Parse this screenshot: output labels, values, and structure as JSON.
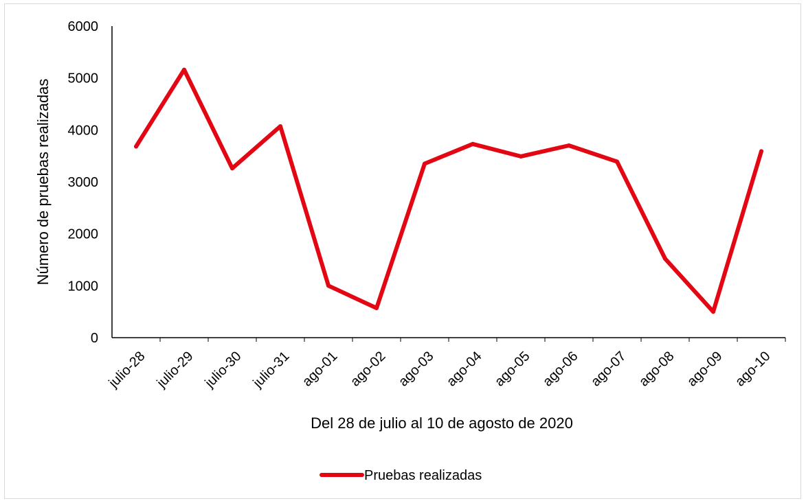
{
  "chart_data": {
    "type": "line",
    "title": "",
    "xlabel": "Del 28 de julio al 10 de agosto de 2020",
    "ylabel": "Número de pruebas realizadas",
    "categories": [
      "julio-28",
      "julio-29",
      "julio-30",
      "julio-31",
      "ago-01",
      "ago-02",
      "ago-03",
      "ago-04",
      "ago-05",
      "ago-06",
      "ago-07",
      "ago-08",
      "ago-09",
      "ago-10"
    ],
    "series": [
      {
        "name": "Pruebas realizadas",
        "color": "#e30613",
        "values": [
          3680,
          5160,
          3260,
          4070,
          1000,
          570,
          3350,
          3730,
          3490,
          3700,
          3390,
          1520,
          500,
          3590
        ]
      }
    ],
    "ylim": [
      0,
      6000
    ],
    "yticks": [
      "0",
      "1000",
      "2000",
      "3000",
      "4000",
      "5000",
      "6000"
    ],
    "grid": false,
    "legend_position": "bottom"
  }
}
